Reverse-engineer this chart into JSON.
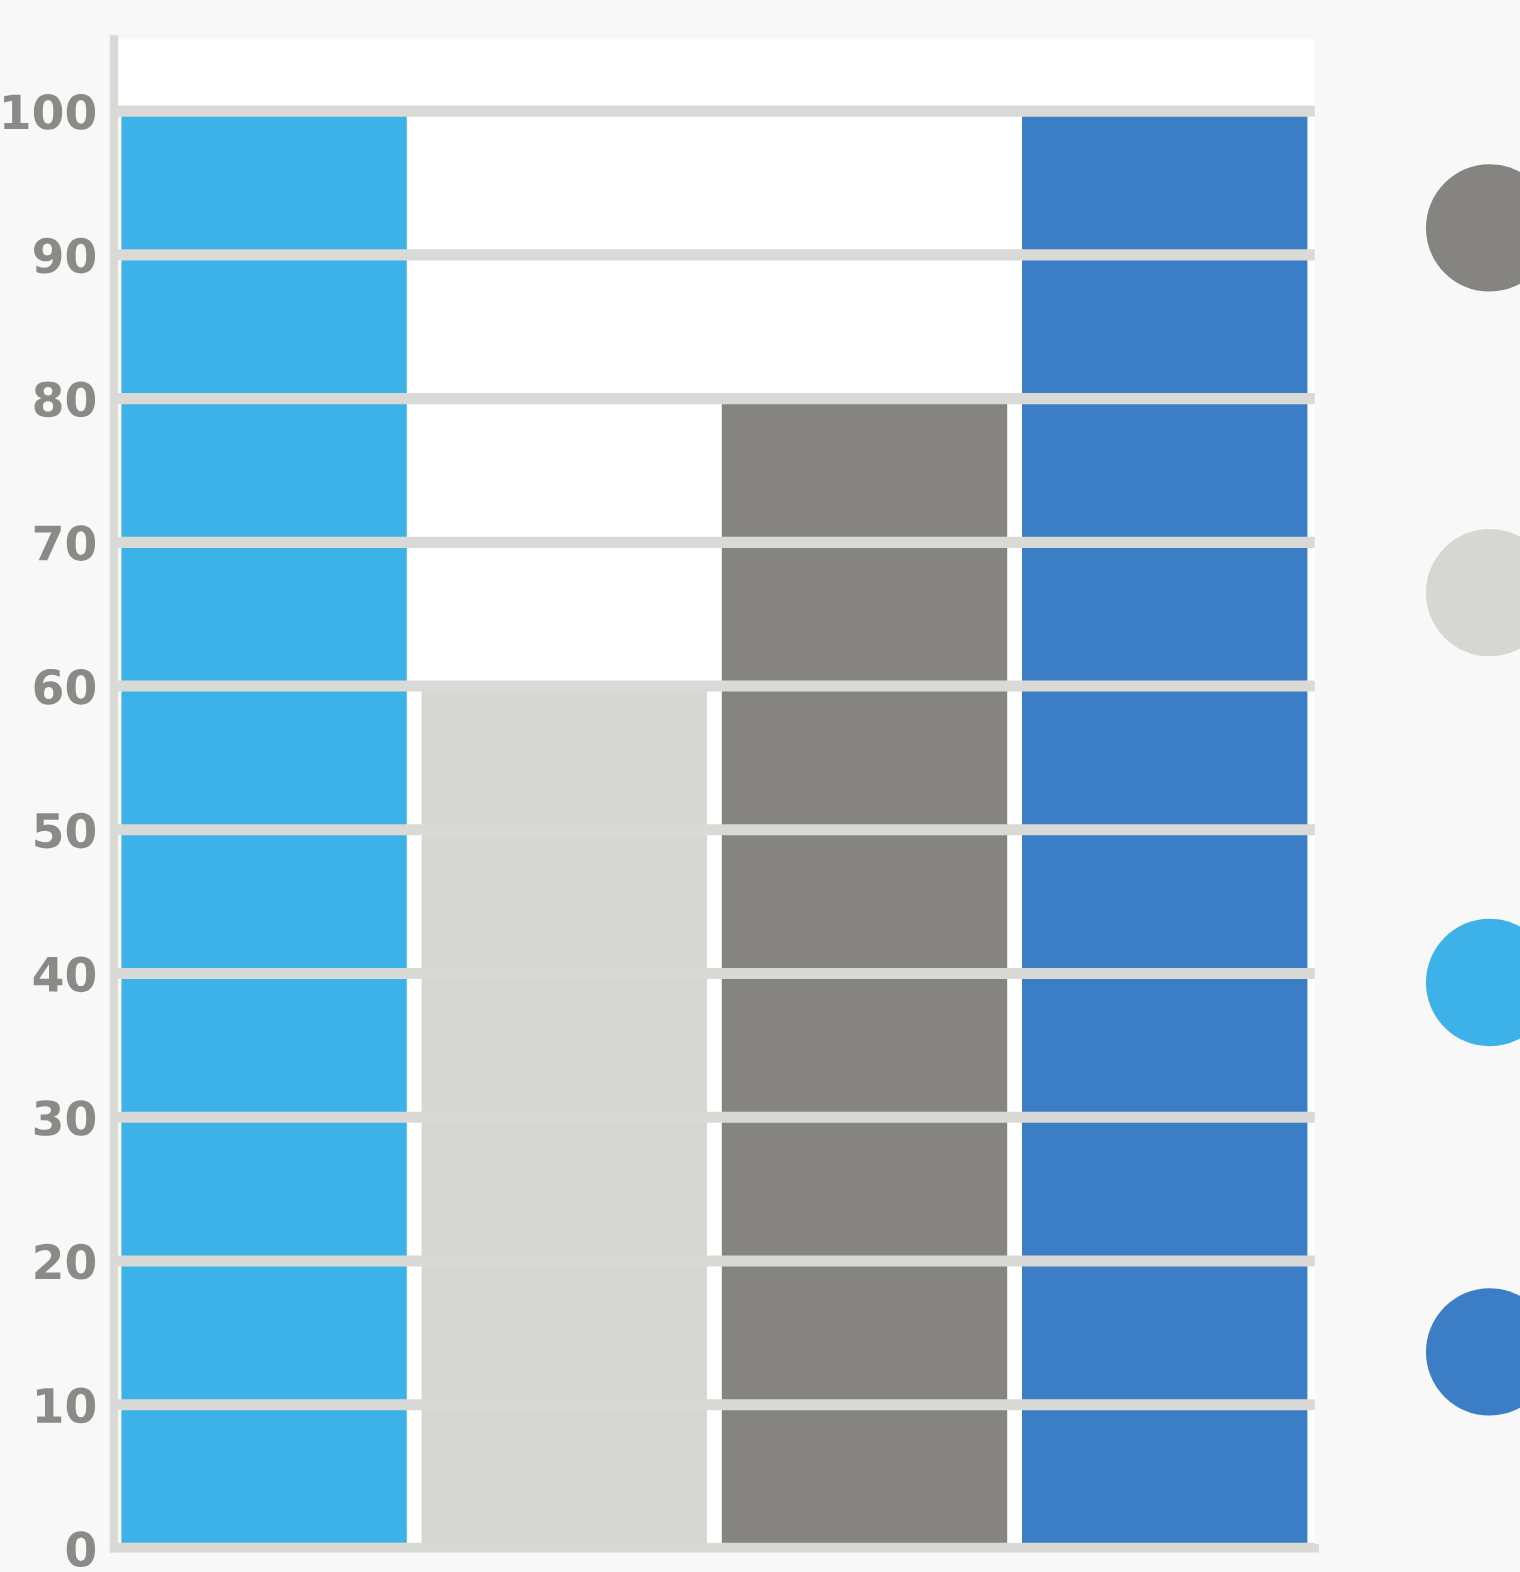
{
  "chart_data": {
    "type": "bar",
    "categories": [
      null,
      null,
      null,
      null
    ],
    "values": [
      100,
      60,
      80,
      100
    ],
    "colors": [
      "#3db2e8",
      "#d6d6d3",
      "#858481",
      "#3b7ec6"
    ],
    "ylim": [
      0,
      105
    ],
    "yticks": [
      0,
      10,
      20,
      30,
      40,
      50,
      60,
      70,
      80,
      90,
      100
    ],
    "grid": "y"
  }
}
